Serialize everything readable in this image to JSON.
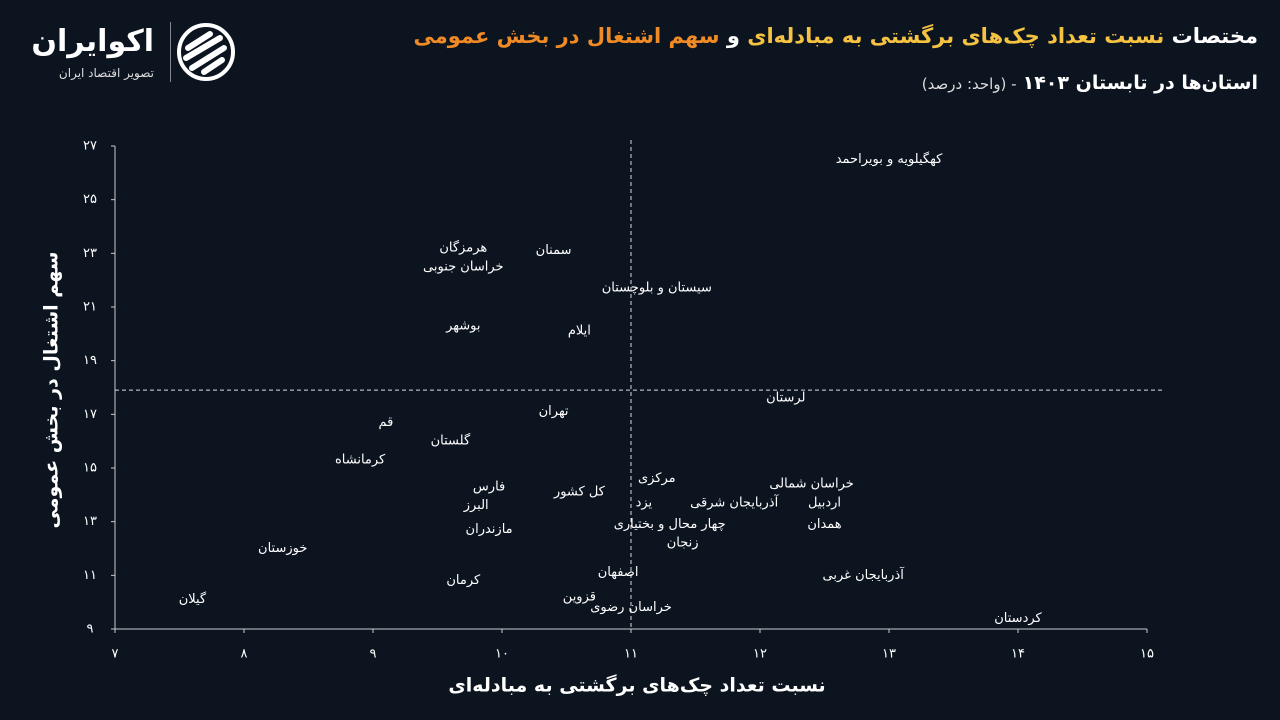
{
  "logo": {
    "name": "اکوایران",
    "tagline": "تصویر اقتصاد ایران"
  },
  "chart_data": {
    "type": "scatter",
    "title_parts": [
      {
        "text": "مختصات",
        "color": "#ffffff"
      },
      {
        "text": "نسبت تعداد چک‌های برگشتی به مبادله‌ای",
        "color": "#f5c242"
      },
      {
        "text": "و",
        "color": "#ffffff"
      },
      {
        "text": "سهم اشتغال در بخش عمومی",
        "color": "#f08a24"
      }
    ],
    "subtitle": "استان‌ها در تابستان ۱۴۰۳",
    "subtitle_note": "- (واحد: درصد)",
    "xlabel": "نسبت تعداد چک‌های برگشتی به مبادله‌ای",
    "xlabel_color": "#e8552c",
    "ylabel": "سهم اشتغال در بخش عمومی",
    "ylabel_color": "#1a9e8c",
    "labels": [
      "کهگیلویه و بویراحمد",
      "هرمزگان",
      "خراسان جنوبی",
      "سمنان",
      "سیستان و بلوچستان",
      "بوشهر",
      "ایلام",
      "لرستان",
      "تهران",
      "قم",
      "گلستان",
      "کرمانشاه",
      "کل کشور",
      "فارس",
      "البرز",
      "مازندران",
      "خوزستان",
      "گیلان",
      "کرمان",
      "اصفهان",
      "قزوین",
      "خراسان رضوی",
      "مرکزی",
      "یزد",
      "آذربایجان شرقی",
      "چهار محال و بختیاری",
      "زنجان",
      "خراسان شمالی",
      "اردبیل",
      "همدان",
      "آذربایجان غربی",
      "کردستان"
    ],
    "x": [
      13.0,
      9.7,
      9.7,
      10.4,
      11.2,
      9.7,
      10.6,
      12.2,
      10.4,
      9.1,
      9.6,
      8.9,
      10.6,
      9.9,
      9.8,
      9.9,
      8.3,
      7.6,
      9.7,
      10.9,
      10.6,
      11.0,
      11.2,
      11.1,
      11.8,
      11.3,
      11.4,
      12.4,
      12.5,
      12.5,
      12.8,
      14.0
    ],
    "values": [
      26.5,
      23.2,
      22.5,
      23.1,
      21.7,
      20.3,
      20.1,
      17.6,
      17.1,
      16.7,
      16.0,
      15.3,
      14.1,
      14.3,
      13.6,
      12.7,
      12.0,
      10.1,
      10.8,
      11.1,
      10.2,
      9.8,
      14.6,
      13.7,
      13.7,
      12.9,
      12.2,
      14.4,
      13.7,
      12.9,
      11.0,
      9.4
    ],
    "color": "#ffffff",
    "vline": 11,
    "hline": 17.9,
    "xlim": [
      7,
      15
    ],
    "ylim": [
      9,
      27
    ],
    "xticks": [
      {
        "value": 7,
        "label": "۷"
      },
      {
        "value": 8,
        "label": "۸"
      },
      {
        "value": 9,
        "label": "۹"
      },
      {
        "value": 10,
        "label": "۱۰"
      },
      {
        "value": 11,
        "label": "۱۱"
      },
      {
        "value": 12,
        "label": "۱۲"
      },
      {
        "value": 13,
        "label": "۱۳"
      },
      {
        "value": 14,
        "label": "۱۴"
      },
      {
        "value": 15,
        "label": "۱۵"
      }
    ],
    "yticks": [
      {
        "value": 9,
        "label": "۹"
      },
      {
        "value": 11,
        "label": "۱۱"
      },
      {
        "value": 13,
        "label": "۱۳"
      },
      {
        "value": 15,
        "label": "۱۵"
      },
      {
        "value": 17,
        "label": "۱۷"
      },
      {
        "value": 19,
        "label": "۱۹"
      },
      {
        "value": 21,
        "label": "۲۱"
      },
      {
        "value": 23,
        "label": "۲۳"
      },
      {
        "value": 25,
        "label": "۲۵"
      },
      {
        "value": 27,
        "label": "۲۷"
      }
    ]
  }
}
